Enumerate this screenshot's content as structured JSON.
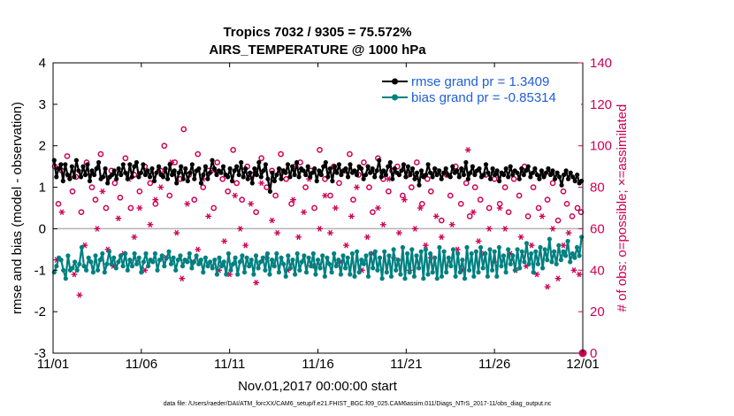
{
  "colors": {
    "rmse": "#000000",
    "bias": "#008080",
    "obs": "#cc0055",
    "zero_line": "#b4b4b4",
    "legend_text": "#1f5fd6",
    "frame": "#000000"
  },
  "chart_data": {
    "type": "line",
    "title": "Tropics 7032 / 9305 = 75.572%",
    "subtitle": "AIRS_TEMPERATURE @ 1000 hPa",
    "xlabel": "Nov.01,2017 00:00:00 start",
    "ylabel": "rmse and bias (model - observation)",
    "ylabel_right": "# of obs: o=possible; ×=assimilated",
    "x_ticks": [
      "11/01",
      "11/06",
      "11/11",
      "11/16",
      "11/21",
      "11/26",
      "12/01"
    ],
    "x_range_days": [
      0,
      30
    ],
    "ylim": [
      -3,
      4
    ],
    "y_ticks": [
      "-3",
      "-2",
      "-1",
      "0",
      "1",
      "2",
      "3",
      "4"
    ],
    "ylim_right": [
      0,
      140
    ],
    "y_ticks_right": [
      "0",
      "20",
      "40",
      "60",
      "80",
      "100",
      "120",
      "140"
    ],
    "footnote": "data file: /Users/raeder/DAI/ATM_forcXX/CAM6_setup/f.e21.FHIST_BGC.f09_025.CAM6assim.011/Diags_NTrS_2017-11/obs_diag_output.nc",
    "series": [
      {
        "name": "rmse",
        "legend_label": "rmse grand pr = 1.3409",
        "axis": "left",
        "marker": "filled-circle",
        "values": [
          1.65,
          1.25,
          1.45,
          1.55,
          1.15,
          1.55,
          1.3,
          1.2,
          1.5,
          1.25,
          1.65,
          1.4,
          1.25,
          1.5,
          1.3,
          1.55,
          1.15,
          1.4,
          1.3,
          1.45,
          1.6,
          1.2,
          1.25,
          1.45,
          1.1,
          1.25,
          1.3,
          1.4,
          1.2,
          1.45,
          1.3,
          1.55,
          1.35,
          1.2,
          1.55,
          1.25,
          1.5,
          1.6,
          1.25,
          1.35,
          1.55,
          1.3,
          1.4,
          1.25,
          1.45,
          1.15,
          1.35,
          1.5,
          1.3,
          1.25,
          1.45,
          1.2,
          1.55,
          1.3,
          1.4,
          1.1,
          1.35,
          1.5,
          1.2,
          1.45,
          1.15,
          1.35,
          1.55,
          1.2,
          1.4,
          1.45,
          1.1,
          1.3,
          1.5,
          1.2,
          1.35,
          1.65,
          1.45,
          1.3,
          1.4,
          1.35,
          1.5,
          1.3,
          1.25,
          1.45,
          1.15,
          1.4,
          1.5,
          1.3,
          1.6,
          1.25,
          1.45,
          1.2,
          1.35,
          1.1,
          1.45,
          1.3,
          1.6,
          1.25,
          1.4,
          1.55,
          1.2,
          0.9,
          1.35,
          1.15,
          1.3,
          1.45,
          1.2,
          1.4,
          1.35,
          1.55,
          1.25,
          1.5,
          1.3,
          1.6,
          1.25,
          1.45,
          1.4,
          1.3,
          1.5,
          1.25,
          1.35,
          1.45,
          1.15,
          1.4,
          1.3,
          1.5,
          1.6,
          1.25,
          1.45,
          1.15,
          1.5,
          1.35,
          1.55,
          1.3,
          1.4,
          1.45,
          1.25,
          1.55,
          1.35,
          1.4,
          1.3,
          1.5,
          1.45,
          1.2,
          1.3,
          1.5,
          1.35,
          1.45,
          1.25,
          1.4,
          1.65,
          1.25,
          1.4,
          1.3,
          1.5,
          1.6,
          1.2,
          1.45,
          1.35,
          1.3,
          1.4,
          1.55,
          1.25,
          1.5,
          1.3,
          1.45,
          1.2,
          1.35,
          1.05,
          1.4,
          1.25,
          1.3,
          1.55,
          1.35,
          1.25,
          1.45,
          1.3,
          1.4,
          1.2,
          1.35,
          1.45,
          1.3,
          1.25,
          1.5,
          1.35,
          1.4,
          1.25,
          1.45,
          1.3,
          1.6,
          1.2,
          1.35,
          1.5,
          1.3,
          1.4,
          1.45,
          1.25,
          1.3,
          1.55,
          1.35,
          1.2,
          1.45,
          1.3,
          1.4,
          1.15,
          1.35,
          1.3,
          1.45,
          1.25,
          1.5,
          1.3,
          1.4,
          1.35,
          1.2,
          1.45,
          1.3,
          1.4,
          1.5,
          1.25,
          1.35,
          1.45,
          1.3,
          1.2,
          1.4,
          1.25,
          1.35,
          1.45,
          1.3,
          1.4,
          1.2,
          1.35,
          1.25,
          1.05,
          1.3,
          1.4,
          1.2,
          1.35,
          1.25,
          1.15,
          1.3,
          1.1,
          1.15
        ]
      },
      {
        "name": "bias",
        "legend_label": "bias grand pr = -0.85314",
        "axis": "left",
        "marker": "filled-circle",
        "values": [
          -1.05,
          -0.9,
          -0.7,
          -0.75,
          -1.0,
          -1.2,
          -0.65,
          -1.0,
          -0.95,
          -0.8,
          -1.0,
          -0.85,
          -0.45,
          -0.9,
          -1.0,
          -0.7,
          -0.8,
          -1.05,
          -0.65,
          -1.0,
          -0.75,
          -0.6,
          -1.05,
          -0.85,
          -0.55,
          -0.85,
          -0.7,
          -0.95,
          -0.8,
          -0.65,
          -0.9,
          -0.6,
          -1.0,
          -0.75,
          -0.9,
          -0.6,
          -0.85,
          -0.7,
          -1.05,
          -0.8,
          -0.6,
          -0.9,
          -0.75,
          -0.8,
          -0.6,
          -1.0,
          -0.75,
          -0.65,
          -0.9,
          -0.7,
          -0.55,
          -0.85,
          -0.7,
          -1.0,
          -0.75,
          -0.65,
          -0.9,
          -0.75,
          -0.8,
          -0.6,
          -0.95,
          -0.8,
          -0.65,
          -0.85,
          -0.75,
          -1.05,
          -0.7,
          -0.9,
          -0.8,
          -0.95,
          -0.75,
          -1.1,
          -0.7,
          -0.9,
          -0.8,
          -1.1,
          -0.6,
          -1.0,
          -0.85,
          -0.7,
          -1.1,
          -0.8,
          -0.65,
          -1.05,
          -0.7,
          -0.9,
          -0.75,
          -1.1,
          -0.65,
          -0.95,
          -0.8,
          -0.7,
          -1.0,
          -0.6,
          -1.1,
          -0.75,
          -0.9,
          -0.6,
          -1.05,
          -0.7,
          -0.85,
          -1.15,
          -0.65,
          -0.95,
          -0.75,
          -1.1,
          -0.6,
          -1.0,
          -0.8,
          -0.65,
          -1.05,
          -0.7,
          -0.9,
          -0.6,
          -1.1,
          -0.75,
          -0.95,
          -0.65,
          -1.15,
          -0.7,
          -0.85,
          -1.05,
          -0.6,
          -0.9,
          -0.75,
          -1.1,
          -0.65,
          -0.95,
          -0.7,
          -1.1,
          -0.6,
          -1.15,
          -0.55,
          -1.05,
          -0.75,
          -0.85,
          -0.65,
          -1.15,
          -0.6,
          -0.95,
          -0.55,
          -1.0,
          -0.7,
          -1.2,
          -0.55,
          -1.05,
          -0.65,
          -1.15,
          -0.5,
          -1.0,
          -0.75,
          -1.1,
          -0.45,
          -1.2,
          -0.6,
          -1.05,
          -0.5,
          -1.15,
          -0.65,
          -0.95,
          -0.55,
          -1.2,
          -0.5,
          -1.1,
          -0.6,
          -1.05,
          -0.7,
          -1.2,
          -0.45,
          -1.15,
          -0.55,
          -1.05,
          -0.7,
          -0.9,
          -0.5,
          -1.15,
          -0.6,
          -1.05,
          -0.75,
          -1.2,
          -0.45,
          -1.0,
          -0.6,
          -1.15,
          -0.55,
          -1.05,
          -0.45,
          -0.95,
          -0.6,
          -1.15,
          -0.5,
          -1.0,
          -0.55,
          -1.15,
          -0.45,
          -0.9,
          -0.65,
          -1.05,
          -0.5,
          -0.85,
          -0.65,
          -1.0,
          -0.5,
          -0.95,
          -0.55,
          -0.8,
          -0.35,
          -0.85,
          -0.6,
          -1.05,
          -0.55,
          -0.85,
          -0.45,
          -0.95,
          -0.5,
          -0.75,
          -0.25,
          -0.8,
          -0.55,
          -0.85,
          -0.4,
          -0.75,
          -0.55,
          -0.65,
          -0.3,
          -0.8,
          -0.6,
          -0.7,
          -0.45,
          -0.65,
          -0.2
        ]
      },
      {
        "name": "possible obs",
        "axis": "right",
        "marker": "open-circle",
        "x_days": [
          0.1,
          0.3,
          0.5,
          0.8,
          1.1,
          1.3,
          1.6,
          1.9,
          2.2,
          2.4,
          2.7,
          3.0,
          3.3,
          3.5,
          3.8,
          4.1,
          4.4,
          4.6,
          4.9,
          5.2,
          5.5,
          5.8,
          6.1,
          6.3,
          6.6,
          6.9,
          7.2,
          7.4,
          7.7,
          8.0,
          8.2,
          8.5,
          8.8,
          9.1,
          9.3,
          9.6,
          9.9,
          10.2,
          10.4,
          10.7,
          11.0,
          11.3,
          11.5,
          11.8,
          12.1,
          12.4,
          12.6,
          12.9,
          13.2,
          13.5,
          13.7,
          14.0,
          14.3,
          14.6,
          14.8,
          15.1,
          15.4,
          15.7,
          15.9,
          16.2,
          16.5,
          16.8,
          17.0,
          17.3,
          17.6,
          17.9,
          18.1,
          18.4,
          18.7,
          19.0,
          19.2,
          19.5,
          19.8,
          20.1,
          20.3,
          20.6,
          20.9,
          21.2,
          21.4,
          21.7,
          22.0,
          22.3,
          22.5,
          22.8,
          23.1,
          23.4,
          23.6,
          23.9,
          24.2,
          24.5,
          24.7,
          25.0,
          25.3,
          25.6,
          25.8,
          26.1,
          26.4,
          26.7,
          26.9,
          27.2,
          27.5,
          27.8,
          28.0,
          28.3,
          28.6,
          28.9,
          29.1,
          29.4,
          29.7,
          29.9
        ],
        "values": [
          90,
          72,
          88,
          95,
          78,
          85,
          68,
          92,
          80,
          74,
          96,
          70,
          88,
          82,
          75,
          94,
          70,
          86,
          78,
          90,
          82,
          72,
          88,
          100,
          76,
          92,
          84,
          108,
          86,
          74,
          96,
          80,
          88,
          70,
          92,
          84,
          78,
          98,
          82,
          74,
          90,
          86,
          68,
          94,
          80,
          88,
          76,
          96,
          84,
          72,
          90,
          92,
          80,
          88,
          70,
          98,
          84,
          76,
          90,
          82,
          88,
          96,
          74,
          86,
          92,
          80,
          68,
          94,
          84,
          78,
          88,
          90,
          76,
          86,
          80,
          92,
          72,
          84,
          78,
          88,
          64,
          86,
          76,
          90,
          72,
          82,
          66,
          80,
          74,
          86,
          70,
          84,
          72,
          80,
          68,
          84,
          76,
          90,
          66,
          80,
          70,
          86,
          74,
          82,
          64,
          78,
          72,
          66,
          70,
          68
        ]
      },
      {
        "name": "assimilated obs",
        "axis": "right",
        "marker": "asterisk",
        "x_days": [
          0.2,
          0.5,
          0.9,
          1.2,
          1.5,
          1.8,
          2.1,
          2.5,
          2.8,
          3.1,
          3.4,
          3.7,
          4.0,
          4.3,
          4.6,
          4.9,
          5.2,
          5.5,
          5.8,
          6.1,
          6.4,
          6.7,
          7.0,
          7.3,
          7.6,
          7.9,
          8.2,
          8.5,
          8.8,
          9.1,
          9.4,
          9.7,
          10.0,
          10.3,
          10.6,
          10.9,
          11.2,
          11.5,
          11.8,
          12.1,
          12.4,
          12.7,
          13.0,
          13.3,
          13.6,
          13.9,
          14.2,
          14.5,
          14.8,
          15.1,
          15.4,
          15.7,
          16.0,
          16.3,
          16.6,
          16.9,
          17.2,
          17.5,
          17.8,
          18.1,
          18.4,
          18.7,
          19.0,
          19.3,
          19.6,
          19.9,
          20.2,
          20.5,
          20.8,
          21.1,
          21.4,
          21.7,
          22.0,
          22.3,
          22.6,
          22.9,
          23.2,
          23.5,
          23.8,
          24.1,
          24.4,
          24.7,
          25.0,
          25.3,
          25.6,
          25.9,
          26.2,
          26.5,
          26.8,
          27.1,
          27.4,
          27.7,
          28.0,
          28.3,
          28.6,
          28.9,
          29.2,
          29.5,
          29.8
        ],
        "values": [
          45,
          68,
          85,
          38,
          28,
          52,
          86,
          60,
          78,
          50,
          42,
          65,
          48,
          84,
          56,
          70,
          40,
          62,
          74,
          80,
          46,
          92,
          58,
          36,
          72,
          44,
          50,
          84,
          66,
          88,
          40,
          54,
          38,
          76,
          60,
          52,
          72,
          34,
          82,
          46,
          64,
          58,
          88,
          40,
          74,
          56,
          68,
          84,
          42,
          60,
          76,
          58,
          70,
          44,
          52,
          66,
          80,
          40,
          56,
          48,
          70,
          62,
          84,
          46,
          58,
          74,
          40,
          60,
          70,
          52,
          46,
          66,
          56,
          86,
          62,
          50,
          40,
          98,
          68,
          54,
          48,
          60,
          44,
          70,
          60,
          48,
          40,
          56,
          42,
          52,
          38,
          66,
          32,
          60,
          36,
          52,
          58,
          40,
          38
        ]
      }
    ]
  }
}
